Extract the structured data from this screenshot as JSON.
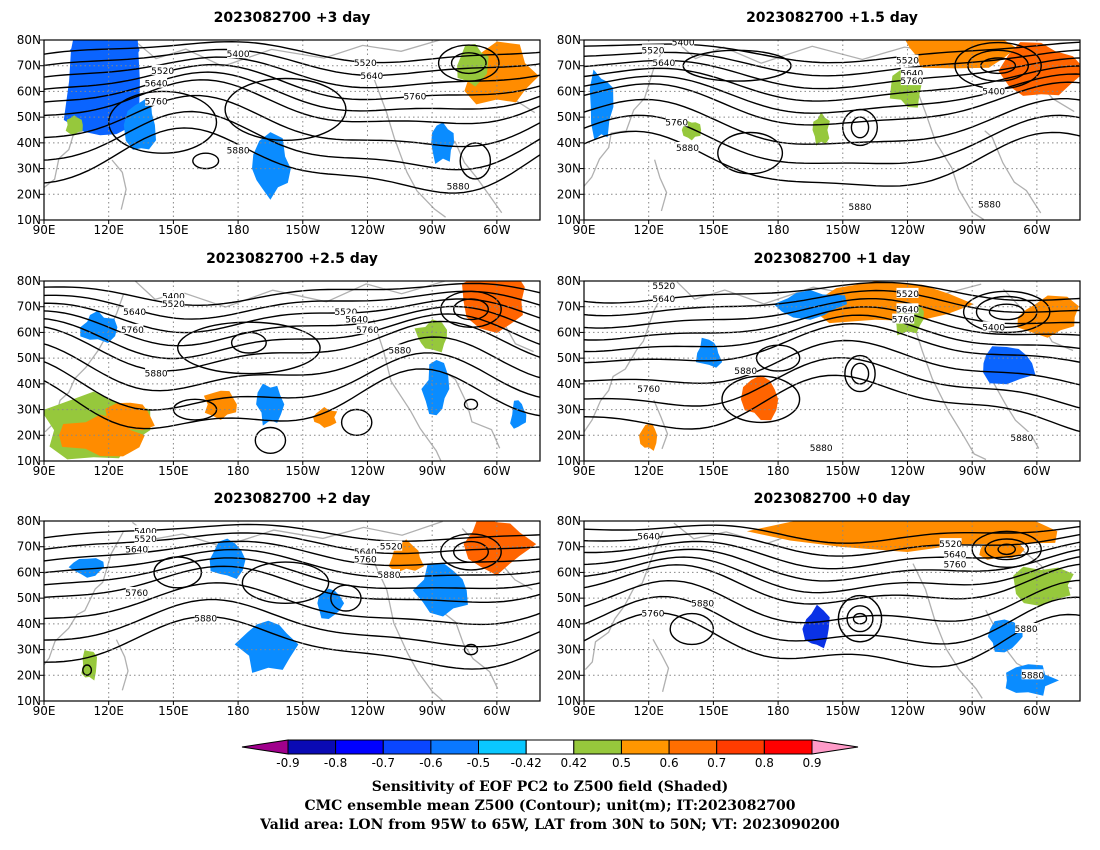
{
  "panels": [
    {
      "id": "p3",
      "title": "2023082700 +3 day",
      "labels": [
        {
          "t": "5400",
          "lon": 180,
          "lat": 74.5
        },
        {
          "t": "5520",
          "lon": 145,
          "lat": 68
        },
        {
          "t": "5640",
          "lon": 142,
          "lat": 63
        },
        {
          "t": "5760",
          "lon": 142,
          "lat": 56
        },
        {
          "t": "5520",
          "lon": 239,
          "lat": 71
        },
        {
          "t": "5640",
          "lon": 242,
          "lat": 66
        },
        {
          "t": "5760",
          "lon": 262,
          "lat": 58
        },
        {
          "t": "5880",
          "lon": 180,
          "lat": 37
        },
        {
          "t": "5880",
          "lon": 282,
          "lat": 23
        }
      ],
      "shades": [
        {
          "lon": 116,
          "lat": 64,
          "rx": 9,
          "ry": 14,
          "c": "#0a64ff"
        },
        {
          "lon": 118,
          "lat": 76,
          "rx": 7,
          "ry": 5,
          "c": "#0a64ff"
        },
        {
          "lon": 135,
          "lat": 47,
          "rx": 4,
          "ry": 6,
          "c": "#0a8cff"
        },
        {
          "lon": 195,
          "lat": 30,
          "rx": 5,
          "ry": 6,
          "c": "#0a8cff"
        },
        {
          "lon": 300,
          "lat": 66,
          "rx": 9,
          "ry": 6,
          "c": "#ff8c00"
        },
        {
          "lon": 290,
          "lat": 70,
          "rx": 4,
          "ry": 4,
          "c": "#96c83c"
        },
        {
          "lon": 275,
          "lat": 40,
          "rx": 3,
          "ry": 4,
          "c": "#0a8cff"
        },
        {
          "lon": 104,
          "lat": 47,
          "rx": 2,
          "ry": 2,
          "c": "#96c83c"
        }
      ],
      "rings": [
        {
          "lon": 145,
          "lat": 48,
          "rx": 25,
          "ry": 12
        },
        {
          "lon": 202,
          "lat": 53,
          "rx": 28,
          "ry": 12
        },
        {
          "lon": 287,
          "lat": 71,
          "rx": 14,
          "ry": 7
        },
        {
          "lon": 287,
          "lat": 71,
          "rx": 8,
          "ry": 4
        },
        {
          "lon": 165,
          "lat": 33,
          "rx": 6,
          "ry": 3
        },
        {
          "lon": 290,
          "lat": 33,
          "rx": 7,
          "ry": 7
        }
      ]
    },
    {
      "id": "p15",
      "title": "2023082700 +1.5 day",
      "labels": [
        {
          "t": "5400",
          "lon": 136,
          "lat": 79
        },
        {
          "t": "5520",
          "lon": 122,
          "lat": 76
        },
        {
          "t": "5640",
          "lon": 127,
          "lat": 71
        },
        {
          "t": "5520",
          "lon": 240,
          "lat": 72
        },
        {
          "t": "5640",
          "lon": 242,
          "lat": 67
        },
        {
          "t": "5760",
          "lon": 242,
          "lat": 64
        },
        {
          "t": "5400",
          "lon": 280,
          "lat": 60
        },
        {
          "t": "5760",
          "lon": 133,
          "lat": 48
        },
        {
          "t": "5880",
          "lon": 138,
          "lat": 38
        },
        {
          "t": "5880",
          "lon": 218,
          "lat": 15
        },
        {
          "t": "5880",
          "lon": 278,
          "lat": 16
        }
      ],
      "shades": [
        {
          "lon": 262,
          "lat": 77,
          "rx": 14,
          "ry": 4,
          "c": "#ff8c00"
        },
        {
          "lon": 302,
          "lat": 68,
          "rx": 9,
          "ry": 6,
          "c": "#ff6400"
        },
        {
          "lon": 240,
          "lat": 62,
          "rx": 4,
          "ry": 4,
          "c": "#96c83c"
        },
        {
          "lon": 98,
          "lat": 54,
          "rx": 3,
          "ry": 7,
          "c": "#0a8cff"
        },
        {
          "lon": 140,
          "lat": 45,
          "rx": 2,
          "ry": 2,
          "c": "#96c83c"
        },
        {
          "lon": 200,
          "lat": 45,
          "rx": 2,
          "ry": 3,
          "c": "#96c83c"
        }
      ],
      "rings": [
        {
          "lon": 282,
          "lat": 70,
          "rx": 20,
          "ry": 9
        },
        {
          "lon": 282,
          "lat": 70,
          "rx": 14,
          "ry": 6
        },
        {
          "lon": 282,
          "lat": 70,
          "rx": 8,
          "ry": 3
        },
        {
          "lon": 218,
          "lat": 46,
          "rx": 8,
          "ry": 7
        },
        {
          "lon": 218,
          "lat": 46,
          "rx": 4,
          "ry": 4
        },
        {
          "lon": 167,
          "lat": 36,
          "rx": 15,
          "ry": 8
        },
        {
          "lon": 161,
          "lat": 70,
          "rx": 25,
          "ry": 6
        }
      ]
    },
    {
      "id": "p25",
      "title": "2023082700 +2.5 day",
      "labels": [
        {
          "t": "5400",
          "lon": 150,
          "lat": 74
        },
        {
          "t": "5520",
          "lon": 150,
          "lat": 71
        },
        {
          "t": "5640",
          "lon": 132,
          "lat": 68
        },
        {
          "t": "5760",
          "lon": 131,
          "lat": 61
        },
        {
          "t": "5520",
          "lon": 230,
          "lat": 68
        },
        {
          "t": "5640",
          "lon": 235,
          "lat": 65
        },
        {
          "t": "5760",
          "lon": 240,
          "lat": 61
        },
        {
          "t": "5880",
          "lon": 255,
          "lat": 53
        },
        {
          "t": "5880",
          "lon": 142,
          "lat": 44
        }
      ],
      "shades": [
        {
          "lon": 113,
          "lat": 22,
          "rx": 13,
          "ry": 7,
          "c": "#96c83c"
        },
        {
          "lon": 116,
          "lat": 20,
          "rx": 9,
          "ry": 4,
          "c": "#ff8c00"
        },
        {
          "lon": 130,
          "lat": 27,
          "rx": 6,
          "ry": 3,
          "c": "#ff8c00"
        },
        {
          "lon": 172,
          "lat": 32,
          "rx": 4,
          "ry": 3,
          "c": "#ff8c00"
        },
        {
          "lon": 195,
          "lat": 32,
          "rx": 3,
          "ry": 4,
          "c": "#0a8cff"
        },
        {
          "lon": 300,
          "lat": 72,
          "rx": 8,
          "ry": 6,
          "c": "#ff6400"
        },
        {
          "lon": 270,
          "lat": 58,
          "rx": 4,
          "ry": 3,
          "c": "#96c83c"
        },
        {
          "lon": 272,
          "lat": 38,
          "rx": 3,
          "ry": 5,
          "c": "#0a8cff"
        },
        {
          "lon": 115,
          "lat": 62,
          "rx": 4,
          "ry": 3,
          "c": "#0a8cff"
        },
        {
          "lon": 220,
          "lat": 27,
          "rx": 3,
          "ry": 2,
          "c": "#ff8c00"
        },
        {
          "lon": 310,
          "lat": 28,
          "rx": 2,
          "ry": 3,
          "c": "#0a8cff"
        }
      ],
      "rings": [
        {
          "lon": 185,
          "lat": 54,
          "rx": 33,
          "ry": 10
        },
        {
          "lon": 185,
          "lat": 56,
          "rx": 8,
          "ry": 4
        },
        {
          "lon": 288,
          "lat": 69,
          "rx": 14,
          "ry": 7
        },
        {
          "lon": 288,
          "lat": 69,
          "rx": 8,
          "ry": 4
        },
        {
          "lon": 160,
          "lat": 30,
          "rx": 10,
          "ry": 4
        },
        {
          "lon": 235,
          "lat": 25,
          "rx": 7,
          "ry": 5
        },
        {
          "lon": 195,
          "lat": 18,
          "rx": 7,
          "ry": 5
        },
        {
          "lon": 288,
          "lat": 32,
          "rx": 3,
          "ry": 2
        }
      ]
    },
    {
      "id": "p1",
      "title": "2023082700 +1 day",
      "labels": [
        {
          "t": "5520",
          "lon": 127,
          "lat": 78
        },
        {
          "t": "5640",
          "lon": 127,
          "lat": 73
        },
        {
          "t": "5520",
          "lon": 240,
          "lat": 75
        },
        {
          "t": "5640",
          "lon": 240,
          "lat": 69
        },
        {
          "t": "5760",
          "lon": 238,
          "lat": 65
        },
        {
          "t": "5400",
          "lon": 280,
          "lat": 62
        },
        {
          "t": "5880",
          "lon": 165,
          "lat": 45
        },
        {
          "t": "5760",
          "lon": 120,
          "lat": 38
        },
        {
          "t": "5880",
          "lon": 200,
          "lat": 15
        },
        {
          "t": "5880",
          "lon": 293,
          "lat": 19
        }
      ],
      "shades": [
        {
          "lon": 172,
          "lat": 34,
          "rx": 4,
          "ry": 4,
          "c": "#ff6400"
        },
        {
          "lon": 225,
          "lat": 71,
          "rx": 20,
          "ry": 4,
          "c": "#ff8c00"
        },
        {
          "lon": 305,
          "lat": 66,
          "rx": 8,
          "ry": 4,
          "c": "#ff8c00"
        },
        {
          "lon": 240,
          "lat": 65,
          "rx": 4,
          "ry": 3,
          "c": "#96c83c"
        },
        {
          "lon": 195,
          "lat": 71,
          "rx": 8,
          "ry": 3,
          "c": "#0a8cff"
        },
        {
          "lon": 148,
          "lat": 52,
          "rx": 3,
          "ry": 3,
          "c": "#0a8cff"
        },
        {
          "lon": 286,
          "lat": 48,
          "rx": 7,
          "ry": 4,
          "c": "#0a64ff"
        },
        {
          "lon": 120,
          "lat": 20,
          "rx": 2,
          "ry": 3,
          "c": "#ff8c00"
        }
      ],
      "rings": [
        {
          "lon": 286,
          "lat": 68,
          "rx": 20,
          "ry": 8
        },
        {
          "lon": 286,
          "lat": 68,
          "rx": 14,
          "ry": 6
        },
        {
          "lon": 286,
          "lat": 68,
          "rx": 8,
          "ry": 3
        },
        {
          "lon": 218,
          "lat": 44,
          "rx": 7,
          "ry": 7
        },
        {
          "lon": 218,
          "lat": 44,
          "rx": 4,
          "ry": 4
        },
        {
          "lon": 172,
          "lat": 34,
          "rx": 18,
          "ry": 9
        },
        {
          "lon": 180,
          "lat": 50,
          "rx": 10,
          "ry": 5
        }
      ]
    },
    {
      "id": "p2",
      "title": "2023082700 +2 day",
      "labels": [
        {
          "t": "5400",
          "lon": 137,
          "lat": 76
        },
        {
          "t": "5520",
          "lon": 137,
          "lat": 73
        },
        {
          "t": "5640",
          "lon": 133,
          "lat": 69
        },
        {
          "t": "5520",
          "lon": 251,
          "lat": 70
        },
        {
          "t": "5640",
          "lon": 239,
          "lat": 68
        },
        {
          "t": "5760",
          "lon": 239,
          "lat": 65
        },
        {
          "t": "5880",
          "lon": 250,
          "lat": 59
        },
        {
          "t": "5760",
          "lon": 133,
          "lat": 52
        },
        {
          "t": "5880",
          "lon": 165,
          "lat": 42
        }
      ],
      "shades": [
        {
          "lon": 194,
          "lat": 32,
          "rx": 7,
          "ry": 6,
          "c": "#0a8cff"
        },
        {
          "lon": 300,
          "lat": 71,
          "rx": 8,
          "ry": 6,
          "c": "#ff6400"
        },
        {
          "lon": 258,
          "lat": 66,
          "rx": 4,
          "ry": 3,
          "c": "#ff8c00"
        },
        {
          "lon": 275,
          "lat": 53,
          "rx": 6,
          "ry": 5,
          "c": "#0a8cff"
        },
        {
          "lon": 175,
          "lat": 65,
          "rx": 4,
          "ry": 4,
          "c": "#0a8cff"
        },
        {
          "lon": 222,
          "lat": 48,
          "rx": 3,
          "ry": 3,
          "c": "#0a8cff"
        },
        {
          "lon": 111,
          "lat": 24,
          "rx": 2,
          "ry": 3,
          "c": "#96c83c"
        },
        {
          "lon": 110,
          "lat": 62,
          "rx": 4,
          "ry": 2,
          "c": "#0a8cff"
        }
      ],
      "rings": [
        {
          "lon": 288,
          "lat": 68,
          "rx": 14,
          "ry": 7
        },
        {
          "lon": 288,
          "lat": 68,
          "rx": 8,
          "ry": 4
        },
        {
          "lon": 202,
          "lat": 56,
          "rx": 20,
          "ry": 8
        },
        {
          "lon": 152,
          "lat": 60,
          "rx": 11,
          "ry": 6
        },
        {
          "lon": 230,
          "lat": 50,
          "rx": 7,
          "ry": 5
        },
        {
          "lon": 110,
          "lat": 22,
          "rx": 2,
          "ry": 2
        },
        {
          "lon": 288,
          "lat": 30,
          "rx": 3,
          "ry": 2
        }
      ]
    },
    {
      "id": "p0",
      "title": "2023082700 +0 day",
      "labels": [
        {
          "t": "5640",
          "lon": 120,
          "lat": 74
        },
        {
          "t": "5520",
          "lon": 260,
          "lat": 71
        },
        {
          "t": "5640",
          "lon": 262,
          "lat": 67
        },
        {
          "t": "5760",
          "lon": 262,
          "lat": 63
        },
        {
          "t": "5760",
          "lon": 122,
          "lat": 44
        },
        {
          "t": "5880",
          "lon": 145,
          "lat": 48
        },
        {
          "t": "5880",
          "lon": 295,
          "lat": 38
        },
        {
          "t": "5880",
          "lon": 298,
          "lat": 20
        }
      ],
      "shades": [
        {
          "lon": 240,
          "lat": 76,
          "rx": 35,
          "ry": 4,
          "c": "#ff8c00"
        },
        {
          "lon": 283,
          "lat": 69,
          "rx": 5,
          "ry": 2,
          "c": "#ff8c00"
        },
        {
          "lon": 302,
          "lat": 55,
          "rx": 8,
          "ry": 4,
          "c": "#96c83c"
        },
        {
          "lon": 198,
          "lat": 38,
          "rx": 3,
          "ry": 4,
          "c": "#0a32e6"
        },
        {
          "lon": 285,
          "lat": 35,
          "rx": 4,
          "ry": 3,
          "c": "#0a8cff"
        },
        {
          "lon": 296,
          "lat": 18,
          "rx": 6,
          "ry": 3,
          "c": "#0a8cff"
        }
      ],
      "rings": [
        {
          "lon": 286,
          "lat": 69,
          "rx": 16,
          "ry": 7
        },
        {
          "lon": 286,
          "lat": 69,
          "rx": 10,
          "ry": 4
        },
        {
          "lon": 286,
          "lat": 69,
          "rx": 4,
          "ry": 2
        },
        {
          "lon": 218,
          "lat": 42,
          "rx": 10,
          "ry": 9
        },
        {
          "lon": 218,
          "lat": 42,
          "rx": 6,
          "ry": 5
        },
        {
          "lon": 218,
          "lat": 42,
          "rx": 3,
          "ry": 2
        },
        {
          "lon": 140,
          "lat": 38,
          "rx": 10,
          "ry": 6
        }
      ]
    }
  ],
  "axes": {
    "lon_ticks": [
      {
        "v": 90,
        "t": "90E"
      },
      {
        "v": 120,
        "t": "120E"
      },
      {
        "v": 150,
        "t": "150E"
      },
      {
        "v": 180,
        "t": "180"
      },
      {
        "v": 210,
        "t": "150W"
      },
      {
        "v": 240,
        "t": "120W"
      },
      {
        "v": 270,
        "t": "90W"
      },
      {
        "v": 300,
        "t": "60W"
      }
    ],
    "lat_ticks": [
      {
        "v": 10,
        "t": "10N"
      },
      {
        "v": 20,
        "t": "20N"
      },
      {
        "v": 30,
        "t": "30N"
      },
      {
        "v": 40,
        "t": "40N"
      },
      {
        "v": 50,
        "t": "50N"
      },
      {
        "v": 60,
        "t": "60N"
      },
      {
        "v": 70,
        "t": "70N"
      },
      {
        "v": 80,
        "t": "80N"
      }
    ],
    "lon_range": [
      90,
      320
    ],
    "lat_range": [
      10,
      80
    ]
  },
  "colorbar": {
    "colors": [
      "#a0008c",
      "#0a0ab4",
      "#0000ff",
      "#0a46ff",
      "#0a78ff",
      "#0ac8ff",
      "#ffffff",
      "#96c83c",
      "#ff9600",
      "#ff6e00",
      "#ff3c00",
      "#ff0000",
      "#ff9bc8"
    ],
    "labels": [
      "-0.9",
      "-0.8",
      "-0.7",
      "-0.6",
      "-0.5",
      "-0.42",
      "0.42",
      "0.5",
      "0.6",
      "0.7",
      "0.8",
      "0.9"
    ]
  },
  "caption": {
    "line1": "Sensitivity of EOF PC2 to Z500 field (Shaded)",
    "line2": "CMC ensemble mean Z500 (Contour); unit(m); IT:2023082700",
    "line3": "Valid area: LON from 95W to 65W, LAT from 30N to 50N; VT: 2023090200"
  }
}
